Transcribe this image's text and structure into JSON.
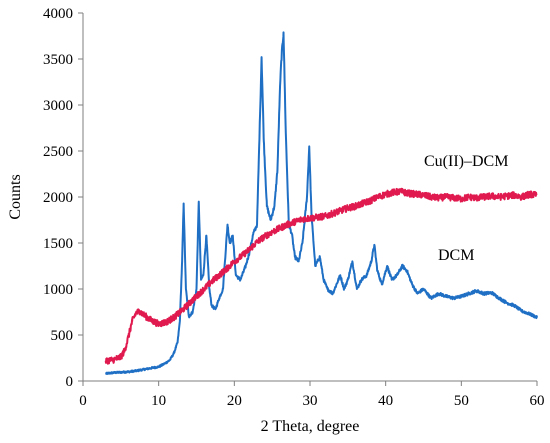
{
  "chart_data": {
    "type": "line",
    "xlabel": "2 Theta, degree",
    "ylabel": "Counts",
    "xlim": [
      0,
      60
    ],
    "ylim": [
      0,
      4000
    ],
    "x_ticks": [
      "0",
      "10",
      "20",
      "30",
      "40",
      "50",
      "60"
    ],
    "y_ticks": [
      "0",
      "500",
      "1000",
      "1500",
      "2000",
      "2500",
      "3000",
      "3500",
      "4000"
    ],
    "grid": false,
    "series": [
      {
        "name": "DCM",
        "color": "#1f6fc5",
        "points": [
          [
            3,
            80
          ],
          [
            4,
            90
          ],
          [
            5,
            95
          ],
          [
            6,
            100
          ],
          [
            7,
            110
          ],
          [
            8,
            125
          ],
          [
            9,
            140
          ],
          [
            10,
            155
          ],
          [
            10.5,
            175
          ],
          [
            11,
            200
          ],
          [
            11.5,
            230
          ],
          [
            12,
            300
          ],
          [
            12.5,
            420
          ],
          [
            12.8,
            650
          ],
          [
            13.1,
            1300
          ],
          [
            13.3,
            1930
          ],
          [
            13.6,
            1000
          ],
          [
            14,
            700
          ],
          [
            14.5,
            750
          ],
          [
            15,
            1000
          ],
          [
            15.3,
            1950
          ],
          [
            15.6,
            1100
          ],
          [
            15.9,
            1150
          ],
          [
            16.3,
            1580
          ],
          [
            16.7,
            1000
          ],
          [
            17,
            820
          ],
          [
            17.5,
            780
          ],
          [
            18,
            900
          ],
          [
            18.5,
            1000
          ],
          [
            19.1,
            1700
          ],
          [
            19.4,
            1500
          ],
          [
            19.8,
            1580
          ],
          [
            20.2,
            1150
          ],
          [
            20.8,
            1100
          ],
          [
            21.5,
            1250
          ],
          [
            22,
            1400
          ],
          [
            22.5,
            1600
          ],
          [
            23,
            1700
          ],
          [
            23.4,
            2900
          ],
          [
            23.6,
            3520
          ],
          [
            23.9,
            2600
          ],
          [
            24.3,
            1900
          ],
          [
            24.8,
            1750
          ],
          [
            25.3,
            1900
          ],
          [
            25.7,
            2300
          ],
          [
            26,
            3100
          ],
          [
            26.2,
            3480
          ],
          [
            26.5,
            3790
          ],
          [
            26.8,
            2700
          ],
          [
            27.2,
            1700
          ],
          [
            27.6,
            1600
          ],
          [
            28,
            1350
          ],
          [
            28.5,
            1300
          ],
          [
            29,
            1500
          ],
          [
            29.6,
            2000
          ],
          [
            29.9,
            2550
          ],
          [
            30.2,
            1800
          ],
          [
            30.7,
            1250
          ],
          [
            31.3,
            1350
          ],
          [
            31.8,
            1100
          ],
          [
            32.3,
            1000
          ],
          [
            33,
            950
          ],
          [
            33.5,
            1050
          ],
          [
            34,
            1150
          ],
          [
            34.5,
            1000
          ],
          [
            35,
            1100
          ],
          [
            35.6,
            1300
          ],
          [
            36.2,
            1000
          ],
          [
            36.8,
            1100
          ],
          [
            37.5,
            1150
          ],
          [
            38.1,
            1300
          ],
          [
            38.5,
            1480
          ],
          [
            38.9,
            1200
          ],
          [
            39.5,
            1050
          ],
          [
            40.2,
            1250
          ],
          [
            40.8,
            1100
          ],
          [
            41.5,
            1150
          ],
          [
            42.2,
            1250
          ],
          [
            42.8,
            1200
          ],
          [
            43.5,
            1050
          ],
          [
            44.2,
            950
          ],
          [
            45,
            1000
          ],
          [
            46,
            900
          ],
          [
            47,
            950
          ],
          [
            48,
            920
          ],
          [
            49,
            900
          ],
          [
            50,
            920
          ],
          [
            51,
            950
          ],
          [
            52,
            980
          ],
          [
            53,
            950
          ],
          [
            54,
            960
          ],
          [
            55,
            900
          ],
          [
            56,
            850
          ],
          [
            57,
            820
          ],
          [
            58,
            760
          ],
          [
            59,
            730
          ],
          [
            60,
            690
          ]
        ]
      },
      {
        "name": "Cu(II)–DCM",
        "color": "#e0194f",
        "points": [
          [
            3,
            220
          ],
          [
            4,
            230
          ],
          [
            5,
            260
          ],
          [
            5.5,
            330
          ],
          [
            6,
            480
          ],
          [
            6.5,
            650
          ],
          [
            7,
            740
          ],
          [
            7.5,
            760
          ],
          [
            8,
            720
          ],
          [
            9,
            660
          ],
          [
            10,
            620
          ],
          [
            11,
            640
          ],
          [
            12,
            690
          ],
          [
            13,
            760
          ],
          [
            14,
            840
          ],
          [
            15,
            920
          ],
          [
            16,
            1000
          ],
          [
            17,
            1080
          ],
          [
            18,
            1150
          ],
          [
            19,
            1220
          ],
          [
            20,
            1300
          ],
          [
            21,
            1360
          ],
          [
            22,
            1430
          ],
          [
            23,
            1510
          ],
          [
            24,
            1570
          ],
          [
            25,
            1620
          ],
          [
            26,
            1660
          ],
          [
            27,
            1700
          ],
          [
            28,
            1730
          ],
          [
            29,
            1760
          ],
          [
            30,
            1770
          ],
          [
            31,
            1780
          ],
          [
            32,
            1790
          ],
          [
            33,
            1820
          ],
          [
            34,
            1850
          ],
          [
            35,
            1880
          ],
          [
            36,
            1900
          ],
          [
            37,
            1930
          ],
          [
            38,
            1960
          ],
          [
            39,
            2000
          ],
          [
            40,
            2030
          ],
          [
            41,
            2050
          ],
          [
            42,
            2060
          ],
          [
            43,
            2040
          ],
          [
            44,
            2030
          ],
          [
            45,
            2020
          ],
          [
            46,
            2000
          ],
          [
            47,
            1990
          ],
          [
            48,
            2000
          ],
          [
            49,
            1990
          ],
          [
            50,
            1980
          ],
          [
            51,
            2000
          ],
          [
            52,
            1990
          ],
          [
            53,
            2000
          ],
          [
            54,
            2010
          ],
          [
            55,
            2000
          ],
          [
            56,
            2010
          ],
          [
            57,
            2020
          ],
          [
            58,
            2000
          ],
          [
            59,
            2030
          ],
          [
            60,
            2020
          ]
        ]
      }
    ],
    "annotations": {
      "cu_label": "Cu(II)–DCM",
      "dcm_label": "DCM"
    }
  }
}
